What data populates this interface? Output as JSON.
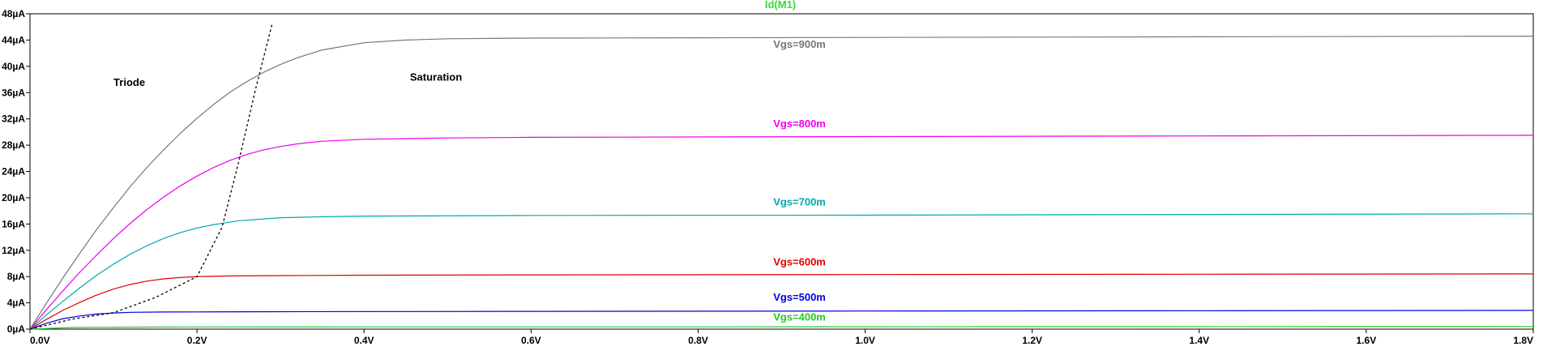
{
  "chart_data": {
    "type": "line",
    "title": "Id(M1)",
    "title_color": "#33dd33",
    "xlabel": "",
    "ylabel": "",
    "xlim": [
      0,
      1.8
    ],
    "ylim": [
      0,
      48
    ],
    "x_unit": "V",
    "y_unit": "µA",
    "grid": false,
    "x_ticks": [
      0.0,
      0.2,
      0.4,
      0.6,
      0.8,
      1.0,
      1.2,
      1.4,
      1.6,
      1.8
    ],
    "x_tick_labels": [
      "0.0V",
      "0.2V",
      "0.4V",
      "0.6V",
      "0.8V",
      "1.0V",
      "1.2V",
      "1.4V",
      "1.6V",
      "1.8V"
    ],
    "y_ticks": [
      0,
      4,
      8,
      12,
      16,
      20,
      24,
      28,
      32,
      36,
      40,
      44,
      48
    ],
    "y_tick_labels": [
      "0µA",
      "4µA",
      "8µA",
      "12µA",
      "16µA",
      "20µA",
      "24µA",
      "28µA",
      "32µA",
      "36µA",
      "40µA",
      "44µA",
      "48µA"
    ],
    "series": [
      {
        "label": "Vgs=400m",
        "color": "#22cc22",
        "x": [
          0.0,
          0.05,
          0.1,
          0.2,
          0.4,
          0.8,
          1.2,
          1.6,
          1.8
        ],
        "y": [
          0,
          0.25,
          0.3,
          0.33,
          0.34,
          0.35,
          0.37,
          0.38,
          0.39
        ]
      },
      {
        "label": "Vgs=500m",
        "color": "#0000dd",
        "x": [
          0.0,
          0.02,
          0.04,
          0.06,
          0.08,
          0.1,
          0.12,
          0.16,
          0.2,
          0.3,
          0.6,
          1.0,
          1.4,
          1.8
        ],
        "y": [
          0,
          0.9,
          1.6,
          2.0,
          2.3,
          2.45,
          2.55,
          2.6,
          2.62,
          2.65,
          2.7,
          2.75,
          2.8,
          2.85
        ]
      },
      {
        "label": "Vgs=600m",
        "color": "#dd0000",
        "x": [
          0.0,
          0.02,
          0.04,
          0.06,
          0.08,
          0.1,
          0.12,
          0.14,
          0.16,
          0.18,
          0.2,
          0.24,
          0.3,
          0.4,
          0.6,
          1.0,
          1.4,
          1.8
        ],
        "y": [
          0,
          1.5,
          2.9,
          4.1,
          5.2,
          6.1,
          6.8,
          7.3,
          7.65,
          7.85,
          8.0,
          8.1,
          8.15,
          8.2,
          8.25,
          8.3,
          8.35,
          8.4
        ]
      },
      {
        "label": "Vgs=700m",
        "color": "#00aaaa",
        "x": [
          0.0,
          0.02,
          0.04,
          0.06,
          0.08,
          0.1,
          0.12,
          0.14,
          0.16,
          0.18,
          0.2,
          0.22,
          0.25,
          0.3,
          0.35,
          0.4,
          0.6,
          1.0,
          1.4,
          1.8
        ],
        "y": [
          0,
          2.2,
          4.3,
          6.3,
          8.2,
          9.9,
          11.4,
          12.7,
          13.8,
          14.7,
          15.4,
          15.9,
          16.5,
          16.95,
          17.1,
          17.2,
          17.3,
          17.35,
          17.45,
          17.55
        ]
      },
      {
        "label": "Vgs=800m",
        "color": "#ee00ee",
        "x": [
          0.0,
          0.02,
          0.04,
          0.06,
          0.08,
          0.1,
          0.12,
          0.14,
          0.16,
          0.18,
          0.2,
          0.22,
          0.24,
          0.26,
          0.28,
          0.3,
          0.32,
          0.35,
          0.4,
          0.45,
          0.5,
          0.6,
          1.0,
          1.4,
          1.8
        ],
        "y": [
          0,
          3.0,
          5.9,
          8.7,
          11.3,
          13.8,
          16.1,
          18.2,
          20.1,
          21.8,
          23.3,
          24.6,
          25.7,
          26.6,
          27.3,
          27.8,
          28.2,
          28.6,
          28.9,
          29.0,
          29.1,
          29.2,
          29.3,
          29.4,
          29.5
        ]
      },
      {
        "label": "Vgs=900m",
        "color": "#777777",
        "x": [
          0.0,
          0.02,
          0.04,
          0.06,
          0.08,
          0.1,
          0.12,
          0.14,
          0.16,
          0.18,
          0.2,
          0.22,
          0.24,
          0.26,
          0.28,
          0.3,
          0.32,
          0.35,
          0.4,
          0.45,
          0.5,
          0.6,
          0.8,
          1.0,
          1.4,
          1.8
        ],
        "y": [
          0,
          4.0,
          7.9,
          11.6,
          15.2,
          18.5,
          21.7,
          24.6,
          27.3,
          29.8,
          32.1,
          34.2,
          36.1,
          37.7,
          39.1,
          40.3,
          41.3,
          42.5,
          43.6,
          44.0,
          44.2,
          44.3,
          44.35,
          44.4,
          44.5,
          44.6
        ]
      },
      {
        "label": "",
        "color": "#000000",
        "dashed": true,
        "x": [
          0.0,
          0.05,
          0.1,
          0.15,
          0.2,
          0.23,
          0.25,
          0.27,
          0.29
        ],
        "y": [
          0,
          1.5,
          2.5,
          4.8,
          8.0,
          15.5,
          25.5,
          36.5,
          46.5
        ]
      }
    ],
    "annotations": [
      {
        "text": "Triode",
        "color": "#000000",
        "x": 0.1,
        "y": 37
      },
      {
        "text": "Saturation",
        "color": "#000000",
        "x": 0.455,
        "y": 37.8
      },
      {
        "text": "Vgs=900m",
        "color": "#777777",
        "x": 0.89,
        "y": 42.8
      },
      {
        "text": "Vgs=800m",
        "color": "#ee00ee",
        "x": 0.89,
        "y": 30.7
      },
      {
        "text": "Vgs=700m",
        "color": "#00aaaa",
        "x": 0.89,
        "y": 18.8
      },
      {
        "text": "Vgs=600m",
        "color": "#dd0000",
        "x": 0.89,
        "y": 9.7
      },
      {
        "text": "Vgs=500m",
        "color": "#0000dd",
        "x": 0.89,
        "y": 4.3
      },
      {
        "text": "Vgs=400m",
        "color": "#22cc22",
        "x": 0.89,
        "y": 1.3
      }
    ]
  }
}
